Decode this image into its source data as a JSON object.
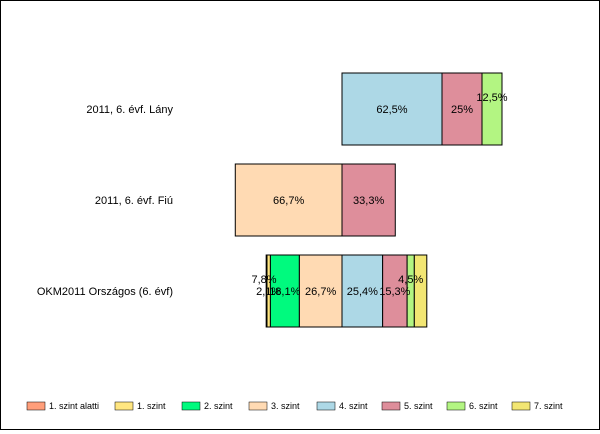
{
  "chart_data": {
    "type": "bar",
    "stacked": "diverging",
    "categories": [
      "2011, 6. évf. Lány",
      "2011, 6. évf. Fiú",
      "OKM2011 Országos (6. évf)"
    ],
    "series": [
      {
        "name": "1. szint alatti",
        "color": "#FF9E7A",
        "values": [
          0,
          0,
          0.5
        ]
      },
      {
        "name": "1. szint",
        "color": "#FFE680",
        "values": [
          0,
          0,
          2.1
        ]
      },
      {
        "name": "2. szint",
        "color": "#00FA7E",
        "values": [
          0,
          0,
          18.1
        ]
      },
      {
        "name": "3. szint",
        "color": "#FFDAB3",
        "values": [
          0,
          66.7,
          26.7
        ]
      },
      {
        "name": "4. szint",
        "color": "#ADD8E6",
        "values": [
          62.5,
          0,
          25.4
        ]
      },
      {
        "name": "5. szint",
        "color": "#DE8E9B",
        "values": [
          25,
          33.3,
          15.3
        ]
      },
      {
        "name": "6. szint",
        "color": "#B3F582",
        "values": [
          12.5,
          0,
          4.5
        ]
      },
      {
        "name": "7. szint",
        "color": "#F2E673",
        "values": [
          0,
          0,
          7.8
        ]
      }
    ],
    "labels": [
      [
        null,
        null,
        null,
        null,
        "62,5%",
        "25%",
        "12,5%",
        null
      ],
      [
        null,
        null,
        null,
        "66,7%",
        null,
        "33,3%",
        null,
        null
      ],
      [
        null,
        "2,1%",
        "18,1%",
        "26,7%",
        "25,4%",
        "15,3%",
        "4,5%",
        "7,8%"
      ]
    ],
    "legend_position": "bottom",
    "grid": false
  }
}
